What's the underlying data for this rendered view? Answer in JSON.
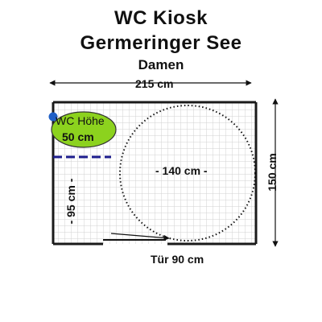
{
  "header": {
    "title": "WC Kiosk",
    "subtitle": "Germeringer See",
    "category": "Damen"
  },
  "dimensions": {
    "width": "215 cm",
    "depth": "150 cm",
    "turning_circle": "- 140 cm -",
    "side_distance": "- 95 cm -",
    "door": "Tür 90 cm"
  },
  "toilet": {
    "label": "WC Höhe",
    "height": "50 cm"
  },
  "colors": {
    "floor_grid": "#d2d2d2",
    "wall": "#1a1a1a",
    "toilet_fill": "#8cd21e",
    "toilet_stroke": "#333333",
    "marker": "#1f5fc6",
    "dashed_line": "#1c1c8c",
    "arrow": "#111111"
  }
}
